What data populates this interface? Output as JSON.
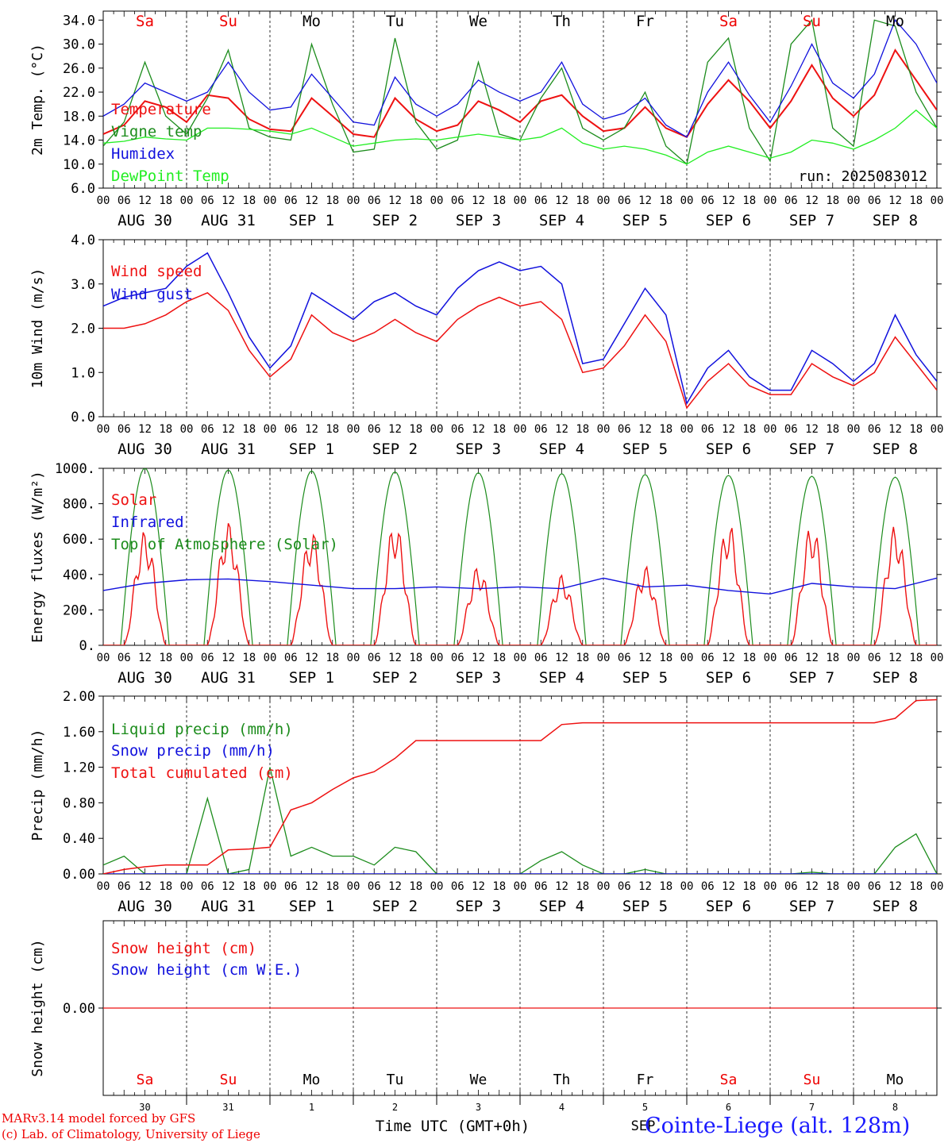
{
  "colors": {
    "red": "#ee1111",
    "green": "#1c8c1c",
    "blue": "#1111dd",
    "light_green": "#22ee22",
    "text_red": "#ee0000",
    "text_black": "#000000"
  },
  "days": {
    "top_dow": [
      "Sa",
      "Su",
      "Mo",
      "Tu",
      "We",
      "Th",
      "Fr",
      "Sa",
      "Su",
      "Mo"
    ],
    "dow_colors": [
      "red",
      "red",
      "black",
      "black",
      "black",
      "black",
      "black",
      "red",
      "red",
      "black"
    ],
    "bottom_dow": [
      "Sa",
      "Su",
      "Mo",
      "Tu",
      "We",
      "Th",
      "Fr",
      "Sa",
      "Su",
      "Mo"
    ],
    "date_labels": [
      "AUG 30",
      "AUG 31",
      "SEP  1",
      "SEP  2",
      "SEP  3",
      "SEP  4",
      "SEP  5",
      "SEP  6",
      "SEP  7",
      "SEP  8"
    ],
    "hour_labels": [
      "00",
      "06",
      "12",
      "18"
    ],
    "final_hour": "00",
    "day_numbers": [
      "30",
      "31",
      "1",
      "2",
      "3",
      "4",
      "5",
      "6",
      "7",
      "8"
    ]
  },
  "footer": {
    "model": "MARv3.14 model forced by GFS",
    "lab": "(c) Lab. of Climatology, University of Liege",
    "axis_title": "Time UTC (GMT+0h)",
    "month": "SEP",
    "station": "Cointe-Liege (alt. 128m)"
  },
  "chart_data": [
    {
      "id": "temperature",
      "type": "line",
      "ylabel": "2m Temp. (°C)",
      "ylim": [
        6,
        35.5
      ],
      "yticks": [
        "6.0",
        "10.0",
        "14.0",
        "18.0",
        "22.0",
        "26.0",
        "30.0",
        "34.0"
      ],
      "ytick_values": [
        6,
        10,
        14,
        18,
        22,
        26,
        30,
        34
      ],
      "annotation": "run: 2025083012",
      "x_hours": [
        0,
        6,
        12,
        18,
        24,
        30,
        36,
        42,
        48,
        54,
        60,
        66,
        72,
        78,
        84,
        90,
        96,
        102,
        108,
        114,
        120,
        126,
        132,
        138,
        144,
        150,
        156,
        162,
        168,
        174,
        180,
        186,
        192,
        198,
        204,
        210,
        216,
        222,
        228,
        234,
        240
      ],
      "series": [
        {
          "name": "Temperature",
          "color": "red",
          "values": [
            15.0,
            16.5,
            20.5,
            19.5,
            17.0,
            21.5,
            21.0,
            17.5,
            15.8,
            15.5,
            21.0,
            18.0,
            15.0,
            14.5,
            21.0,
            17.5,
            15.5,
            16.5,
            20.5,
            19.0,
            17.0,
            20.5,
            21.5,
            18.0,
            15.5,
            16.0,
            19.5,
            16.0,
            14.5,
            20.0,
            24.0,
            20.5,
            16.0,
            20.5,
            26.5,
            21.0,
            18.0,
            21.5,
            29.0,
            24.0,
            19.0
          ]
        },
        {
          "name": "Vigne temp",
          "color": "green",
          "values": [
            13.0,
            17.0,
            27.0,
            18.0,
            15.0,
            21.0,
            29.0,
            16.0,
            14.5,
            14.0,
            30.0,
            20.0,
            12.0,
            12.5,
            31.0,
            17.0,
            12.5,
            14.0,
            27.0,
            15.0,
            14.0,
            21.0,
            26.0,
            16.0,
            14.0,
            16.0,
            22.0,
            13.0,
            10.0,
            27.0,
            31.0,
            16.0,
            10.5,
            30.0,
            34.0,
            16.0,
            13.0,
            34.0,
            33.0,
            22.0,
            16.0
          ]
        },
        {
          "name": "Humidex",
          "color": "blue",
          "values": [
            18.0,
            20.0,
            23.5,
            22.0,
            20.5,
            22.0,
            27.0,
            22.0,
            19.0,
            19.5,
            25.0,
            21.0,
            17.0,
            16.5,
            24.5,
            20.0,
            18.0,
            20.0,
            24.0,
            22.0,
            20.5,
            22.0,
            27.0,
            20.0,
            17.5,
            18.5,
            21.0,
            16.5,
            14.5,
            22.0,
            27.0,
            21.5,
            17.0,
            23.0,
            30.0,
            23.5,
            21.0,
            25.0,
            34.0,
            30.0,
            23.5
          ]
        },
        {
          "name": "DewPoint Temp",
          "color": "light_green",
          "values": [
            13.5,
            13.8,
            14.5,
            14.2,
            14.0,
            16.0,
            16.0,
            15.8,
            15.5,
            15.0,
            16.0,
            14.5,
            13.0,
            13.5,
            14.0,
            14.2,
            14.0,
            14.5,
            15.0,
            14.5,
            14.0,
            14.5,
            16.0,
            13.5,
            12.5,
            13.0,
            12.5,
            11.5,
            10.0,
            12.0,
            13.0,
            12.0,
            11.0,
            12.0,
            14.0,
            13.5,
            12.5,
            14.0,
            16.0,
            19.0,
            16.0
          ]
        }
      ]
    },
    {
      "id": "wind",
      "type": "line",
      "ylabel": "10m Wind (m/s)",
      "ylim": [
        0,
        4
      ],
      "yticks": [
        "0.0",
        "1.0",
        "2.0",
        "3.0",
        "4.0"
      ],
      "ytick_values": [
        0,
        1,
        2,
        3,
        4
      ],
      "x_hours": [
        0,
        6,
        12,
        18,
        24,
        30,
        36,
        42,
        48,
        54,
        60,
        66,
        72,
        78,
        84,
        90,
        96,
        102,
        108,
        114,
        120,
        126,
        132,
        138,
        144,
        150,
        156,
        162,
        168,
        174,
        180,
        186,
        192,
        198,
        204,
        210,
        216,
        222,
        228,
        234,
        240
      ],
      "series": [
        {
          "name": "Wind speed",
          "color": "red",
          "values": [
            2.0,
            2.0,
            2.1,
            2.3,
            2.6,
            2.8,
            2.4,
            1.5,
            0.9,
            1.3,
            2.3,
            1.9,
            1.7,
            1.9,
            2.2,
            1.9,
            1.7,
            2.2,
            2.5,
            2.7,
            2.5,
            2.6,
            2.2,
            1.0,
            1.1,
            1.6,
            2.3,
            1.7,
            0.2,
            0.8,
            1.2,
            0.7,
            0.5,
            0.5,
            1.2,
            0.9,
            0.7,
            1.0,
            1.8,
            1.2,
            0.6
          ]
        },
        {
          "name": "Wind gust",
          "color": "blue",
          "values": [
            2.5,
            2.7,
            2.8,
            2.9,
            3.4,
            3.7,
            2.8,
            1.8,
            1.1,
            1.6,
            2.8,
            2.5,
            2.2,
            2.6,
            2.8,
            2.5,
            2.3,
            2.9,
            3.3,
            3.5,
            3.3,
            3.4,
            3.0,
            1.2,
            1.3,
            2.1,
            2.9,
            2.3,
            0.3,
            1.1,
            1.5,
            0.9,
            0.6,
            0.6,
            1.5,
            1.2,
            0.8,
            1.2,
            2.3,
            1.4,
            0.8
          ]
        }
      ]
    },
    {
      "id": "energy",
      "type": "line",
      "ylabel": "Energy fluxes (W/m²)",
      "ylim": [
        0,
        1000
      ],
      "yticks": [
        "0.",
        "200.",
        "400.",
        "600.",
        "800.",
        "1000."
      ],
      "ytick_values": [
        0,
        200,
        400,
        600,
        800,
        1000
      ],
      "toa_peaks": [
        1000,
        990,
        985,
        980,
        975,
        970,
        965,
        960,
        955,
        950
      ],
      "solar_peaks": [
        650,
        700,
        650,
        700,
        450,
        400,
        450,
        700,
        690,
        680
      ],
      "infrared": [
        310,
        350,
        370,
        375,
        360,
        340,
        320,
        320,
        330,
        320,
        330,
        320,
        380,
        330,
        340,
        310,
        290,
        350,
        330,
        320,
        380
      ],
      "series": [
        {
          "name": "Solar",
          "color": "red"
        },
        {
          "name": "Infrared",
          "color": "blue"
        },
        {
          "name": "Top of Atmosphere (Solar)",
          "color": "green"
        }
      ]
    },
    {
      "id": "precip",
      "type": "line",
      "ylabel": "Precip (mm/h)",
      "ylim": [
        0,
        2
      ],
      "yticks": [
        "0.00",
        "0.40",
        "0.80",
        "1.20",
        "1.60",
        "2.00"
      ],
      "ytick_values": [
        0,
        0.4,
        0.8,
        1.2,
        1.6,
        2.0
      ],
      "x_hours": [
        0,
        6,
        12,
        18,
        24,
        30,
        36,
        42,
        48,
        54,
        60,
        66,
        72,
        78,
        84,
        90,
        96,
        102,
        108,
        114,
        120,
        126,
        132,
        138,
        144,
        150,
        156,
        162,
        168,
        174,
        180,
        186,
        192,
        198,
        204,
        210,
        216,
        222,
        228,
        234,
        240
      ],
      "series": [
        {
          "name": "Liquid precip (mm/h)",
          "color": "green",
          "values": [
            0.1,
            0.2,
            0.0,
            0.0,
            0.0,
            0.85,
            0.0,
            0.05,
            1.2,
            0.2,
            0.3,
            0.2,
            0.2,
            0.1,
            0.3,
            0.25,
            0.0,
            0.0,
            0.0,
            0.0,
            0.0,
            0.15,
            0.25,
            0.1,
            0.0,
            0.0,
            0.05,
            0.0,
            0.0,
            0.0,
            0.0,
            0.0,
            0.0,
            0.0,
            0.02,
            0.0,
            0.0,
            0.0,
            0.3,
            0.45,
            0.0
          ]
        },
        {
          "name": "Snow precip (mm/h)",
          "color": "blue",
          "values": [
            0,
            0,
            0,
            0,
            0,
            0,
            0,
            0,
            0,
            0,
            0,
            0,
            0,
            0,
            0,
            0,
            0,
            0,
            0,
            0,
            0,
            0,
            0,
            0,
            0,
            0,
            0,
            0,
            0,
            0,
            0,
            0,
            0,
            0,
            0,
            0,
            0,
            0,
            0,
            0,
            0
          ]
        },
        {
          "name": "Total cumulated (cm)",
          "color": "red",
          "values": [
            0.0,
            0.05,
            0.08,
            0.1,
            0.1,
            0.1,
            0.27,
            0.28,
            0.3,
            0.72,
            0.8,
            0.95,
            1.08,
            1.15,
            1.3,
            1.5,
            1.5,
            1.5,
            1.5,
            1.5,
            1.5,
            1.5,
            1.68,
            1.7,
            1.7,
            1.7,
            1.7,
            1.7,
            1.7,
            1.7,
            1.7,
            1.7,
            1.7,
            1.7,
            1.7,
            1.7,
            1.7,
            1.7,
            1.75,
            1.95,
            1.96
          ]
        }
      ]
    },
    {
      "id": "snow",
      "type": "line",
      "ylabel": "Snow height (cm)",
      "yticks": [
        "0.00"
      ],
      "ytick_values": [
        0
      ],
      "series": [
        {
          "name": "Snow height (cm)",
          "color": "red",
          "values": [
            0,
            0
          ]
        },
        {
          "name": "Snow height (cm W.E.)",
          "color": "blue",
          "values": [
            0,
            0
          ]
        }
      ]
    }
  ]
}
